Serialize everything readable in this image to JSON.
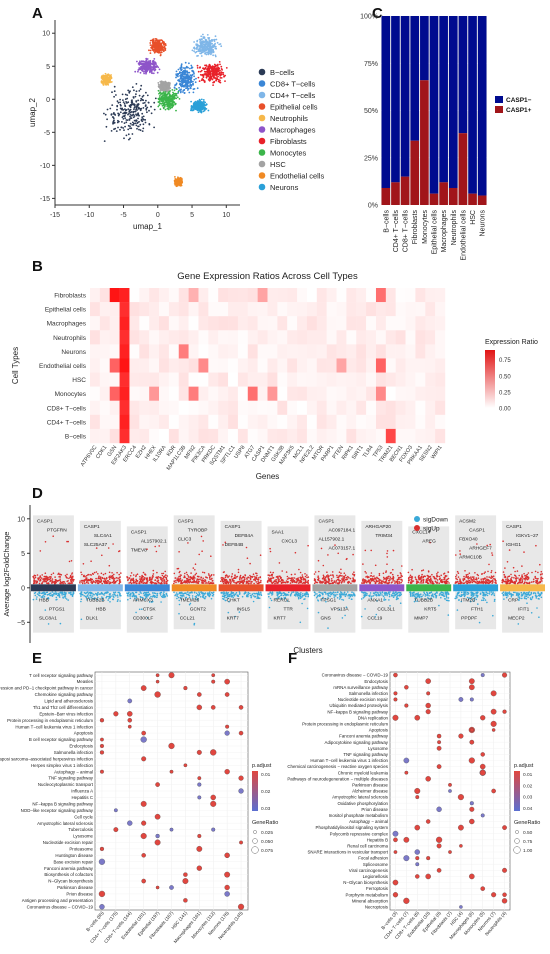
{
  "panel_labels": {
    "a": "A",
    "b": "B",
    "c": "C",
    "d": "D",
    "e": "E",
    "f": "F"
  },
  "colors": {
    "bcells": "#2b3a55",
    "cd8": "#3a86d6",
    "cd4": "#7fb6e8",
    "epi": "#e8502a",
    "neut": "#f6b84a",
    "mac": "#8e55c9",
    "fib": "#e8212a",
    "mono": "#3bb54a",
    "hsc": "#a3a3a3",
    "endo": "#f08a24",
    "neur": "#2aa0d8",
    "casp_neg": "#000b8f",
    "casp_pos": "#a1151a",
    "sig_down": "#3aa9d8",
    "sig_up": "#d93030"
  },
  "chart_data": [
    {
      "type": "scatter",
      "panel": "A",
      "xlabel": "umap_1",
      "ylabel": "umap_2",
      "xticks": [
        "-15",
        "-10",
        "-5",
        "0",
        "5",
        "10"
      ],
      "yticks": [
        "-15",
        "-10",
        "-5",
        "0",
        "5",
        "10"
      ],
      "xlim": [
        -15,
        12
      ],
      "ylim": [
        -16,
        12
      ],
      "legend": [
        {
          "label": "B−cells",
          "color": "#2b3a55"
        },
        {
          "label": "CD8+ T−cells",
          "color": "#3a86d6"
        },
        {
          "label": "CD4+ T−cells",
          "color": "#7fb6e8"
        },
        {
          "label": "Epithelial cells",
          "color": "#e8502a"
        },
        {
          "label": "Neutrophils",
          "color": "#f6b84a"
        },
        {
          "label": "Macrophages",
          "color": "#8e55c9"
        },
        {
          "label": "Fibroblasts",
          "color": "#e8212a"
        },
        {
          "label": "Monocytes",
          "color": "#3bb54a"
        },
        {
          "label": "HSC",
          "color": "#a3a3a3"
        },
        {
          "label": "Endothelial cells",
          "color": "#f08a24"
        },
        {
          "label": "Neurons",
          "color": "#2aa0d8"
        }
      ],
      "clusters": [
        {
          "name": "B−cells",
          "cx": -4,
          "cy": -2,
          "rx": 4.5,
          "ry": 5
        },
        {
          "name": "CD8+ T−cells",
          "cx": 4,
          "cy": 3,
          "rx": 2,
          "ry": 3
        },
        {
          "name": "CD4+ T−cells",
          "cx": 7,
          "cy": 8,
          "rx": 2.5,
          "ry": 2
        },
        {
          "name": "Epithelial cells",
          "cx": 0,
          "cy": 8,
          "rx": 1.5,
          "ry": 1.5
        },
        {
          "name": "Neutrophils",
          "cx": -7.5,
          "cy": 3,
          "rx": 1,
          "ry": 1
        },
        {
          "name": "Macrophages",
          "cx": -1.5,
          "cy": 5,
          "rx": 2,
          "ry": 1.5
        },
        {
          "name": "Fibroblasts",
          "cx": 8,
          "cy": 4,
          "rx": 2.5,
          "ry": 2
        },
        {
          "name": "Monocytes",
          "cx": 1.5,
          "cy": 0,
          "rx": 2,
          "ry": 2
        },
        {
          "name": "HSC",
          "cx": 1,
          "cy": 2,
          "rx": 1,
          "ry": 1
        },
        {
          "name": "Endothelial cells",
          "cx": 3,
          "cy": -12.5,
          "rx": 0.7,
          "ry": 0.8
        },
        {
          "name": "Neurons",
          "cx": 6,
          "cy": -1,
          "rx": 1.5,
          "ry": 1.2
        }
      ]
    },
    {
      "type": "bar",
      "panel": "C",
      "stacked": true,
      "categories": [
        "B−cells",
        "CD4+ T−cells",
        "CD8+ T−cells",
        "Fibroblasts",
        "Monocytes",
        "Epithelial cells",
        "Macrophages",
        "Neutrophils",
        "Endothelial cells",
        "HSC",
        "Neurons"
      ],
      "series": [
        {
          "name": "CASP1−",
          "values": [
            91,
            88,
            85,
            66,
            34,
            94,
            88,
            91,
            62,
            94,
            95
          ]
        },
        {
          "name": "CASP1+",
          "values": [
            9,
            12,
            15,
            34,
            66,
            6,
            12,
            9,
            38,
            6,
            5
          ]
        }
      ],
      "yticks": [
        "0%",
        "25%",
        "50%",
        "75%",
        "100%"
      ],
      "ylim": [
        0,
        100
      ],
      "legend_position": "right"
    },
    {
      "type": "heatmap",
      "panel": "B",
      "title": "Gene Expression Ratios Across Cell Types",
      "xlabel": "Genes",
      "ylabel": "Cell Types",
      "rows": [
        "Fibroblasts",
        "Epithelial cells",
        "Macrophages",
        "Neutrophils",
        "Neurons",
        "Endothelial cells",
        "HSC",
        "Monocytes",
        "CD8+ T−cells",
        "CD4+ T−cells",
        "B−cells"
      ],
      "cols": [
        "ATP6V0C",
        "CDK1",
        "GSN",
        "EIF2AK3",
        "ERCC4",
        "EZH2",
        "HHEX",
        "IL10RA",
        "KDR",
        "MAP1LC3B",
        "MFN2",
        "PIK3CA",
        "PRKDC",
        "SQSTM1",
        "SPTLC1",
        "USP8",
        "ATG7",
        "CASP1",
        "DNMT1",
        "GSK3B",
        "MAP3K5",
        "MCL1",
        "NFE2L2",
        "MTOR",
        "PARP1",
        "PTEN",
        "RIPK1",
        "SIRT1",
        "TLR4",
        "TP53",
        "TRIM21",
        "BECN1",
        "FOXO3",
        "PRKAA1",
        "SESN2",
        "WIPI1"
      ],
      "colorbar": {
        "title": "Expression Ratio",
        "ticks": [
          "0.75",
          "0.50",
          "0.25",
          "0.00"
        ],
        "min": 0,
        "max": 0.9
      },
      "hotspots": [
        {
          "row": 0,
          "col": 2,
          "v": 0.9
        },
        {
          "row": 0,
          "col": 3,
          "v": 0.85
        },
        {
          "row": 1,
          "col": 3,
          "v": 0.8
        },
        {
          "row": 2,
          "col": 3,
          "v": 0.85
        },
        {
          "row": 3,
          "col": 3,
          "v": 0.8
        },
        {
          "row": 4,
          "col": 3,
          "v": 0.85
        },
        {
          "row": 5,
          "col": 3,
          "v": 0.9
        },
        {
          "row": 6,
          "col": 3,
          "v": 0.8
        },
        {
          "row": 7,
          "col": 3,
          "v": 0.85
        },
        {
          "row": 8,
          "col": 3,
          "v": 0.8
        },
        {
          "row": 9,
          "col": 3,
          "v": 0.85
        },
        {
          "row": 10,
          "col": 3,
          "v": 0.8
        },
        {
          "row": 5,
          "col": 2,
          "v": 0.6
        },
        {
          "row": 7,
          "col": 2,
          "v": 0.6
        },
        {
          "row": 0,
          "col": 10,
          "v": 0.3
        },
        {
          "row": 7,
          "col": 10,
          "v": 0.5
        },
        {
          "row": 7,
          "col": 16,
          "v": 0.55
        },
        {
          "row": 0,
          "col": 29,
          "v": 0.55
        },
        {
          "row": 5,
          "col": 29,
          "v": 0.6
        },
        {
          "row": 7,
          "col": 29,
          "v": 0.45
        },
        {
          "row": 10,
          "col": 30,
          "v": 0.7
        },
        {
          "row": 4,
          "col": 9,
          "v": 0.5
        },
        {
          "row": 5,
          "col": 11,
          "v": 0.45
        },
        {
          "row": 7,
          "col": 6,
          "v": 0.4
        },
        {
          "row": 0,
          "col": 17,
          "v": 0.35
        },
        {
          "row": 7,
          "col": 18,
          "v": 0.4
        },
        {
          "row": 5,
          "col": 25,
          "v": 0.35
        }
      ]
    },
    {
      "type": "scatter",
      "panel": "D",
      "xlabel": "Clusters",
      "ylabel": "Average log2FoldChange",
      "yticks": [
        "10",
        "5",
        "0",
        "−5"
      ],
      "ylim": [
        -8,
        12
      ],
      "legend": [
        {
          "label": "sigDown",
          "color": "#3aa9d8"
        },
        {
          "label": "sigUp",
          "color": "#d93030"
        }
      ],
      "clusters": [
        {
          "name": "B−cells",
          "color": "#2b3a55",
          "up": [
            "CASP1",
            "PTGFRN"
          ],
          "down": [
            "HBB",
            "PTGS1",
            "SLC8A1"
          ]
        },
        {
          "name": "CD4+ T−cells",
          "color": "#7fb6e8",
          "up": [
            "CASP1",
            "SLC4A1",
            "SLC25A37"
          ],
          "down": [
            "TUBB2B",
            "HBB",
            "DLK1"
          ]
        },
        {
          "name": "CD8+ T−cells",
          "color": "#3a86d6",
          "up": [
            "CASP1",
            "AL157902.1",
            "TMEV8"
          ],
          "down": [
            "ARMCX3",
            "CTSK",
            "CD300LF"
          ]
        },
        {
          "name": "Endothelial cells",
          "color": "#f08a24",
          "up": [
            "CASP1",
            "TYROBP",
            "CLIC3"
          ],
          "down": [
            "TMEM26",
            "GCNT2",
            "CCL21"
          ]
        },
        {
          "name": "Epithelial cells",
          "color": "#e8502a",
          "up": [
            "CASP1",
            "DEFB4A",
            "DEFB4B"
          ],
          "down": [
            "CHKT",
            "INSL5",
            "KRT7"
          ]
        },
        {
          "name": "Fibroblasts",
          "color": "#e8212a",
          "up": [
            "SAA1",
            "CXCL3"
          ],
          "down": [
            "REROL",
            "TTR",
            "KRT7"
          ]
        },
        {
          "name": "HSC",
          "color": "#a3a3a3",
          "up": [
            "CASP1",
            "AC097184.1",
            "AL157902.1",
            "AC073157.1"
          ],
          "down": [
            "TPSG1",
            "VPS13A",
            "GNS"
          ]
        },
        {
          "name": "Macrophages",
          "color": "#8e55c9",
          "up": [
            "ARHGAP20",
            "TRIM34"
          ],
          "down": [
            "ANXA1",
            "CCL3L1",
            "CCL19"
          ]
        },
        {
          "name": "Monocytes",
          "color": "#3bb54a",
          "up": [
            "CXCL14",
            "AREG"
          ],
          "down": [
            "TUBB2B",
            "KRT5",
            "MMP7"
          ]
        },
        {
          "name": "Neurons",
          "color": "#2aa0d8",
          "up": [
            "ACSM2",
            "CASP1",
            "FBXO40",
            "ARHGEF7",
            "ARMC10B"
          ],
          "down": [
            "ITM2B",
            "FTH1",
            "PPDPF"
          ]
        },
        {
          "name": "Neutrophils",
          "color": "#f6b84a",
          "up": [
            "CASP1",
            "IGKV1−27",
            "IGHG1"
          ],
          "down": [
            "CRP",
            "IFIT1",
            "MECP2"
          ]
        }
      ]
    },
    {
      "type": "scatter",
      "panel": "E",
      "legend": {
        "title": "p.adjust",
        "ticks": [
          "0.01",
          "0.02",
          "0.03"
        ],
        "size_title": "GeneRatio",
        "size_ticks": [
          "0.025",
          "0.050",
          "0.075"
        ]
      },
      "pathways": [
        "T cell receptor signaling pathway",
        "Measles",
        "PD−L1 expression and PD−1 checkpoint pathway in cancer",
        "Chemokine signaling pathway",
        "Lipid and atherosclerosis",
        "Th1 and Th2 cell differentiation",
        "Epstein−Barr virus infection",
        "Protein processing in endoplasmic reticulum",
        "Human T−cell leukemia virus 1 infection",
        "Apoptosis",
        "B cell receptor signaling pathway",
        "Endocytosis",
        "Salmonella infection",
        "Kaposi sarcoma−associated herpesvirus infection",
        "Herpes simplex virus 1 infection",
        "Autophagy − animal",
        "TNF signaling pathway",
        "Nucleocytoplasmic transport",
        "Influenza A",
        "Hepatitis C",
        "NF−kappa B signaling pathway",
        "NOD−like receptor signaling pathway",
        "Cell cycle",
        "Amyotrophic lateral sclerosis",
        "Tuberculosis",
        "Lysosome",
        "Nucleotide excision repair",
        "Proteasome",
        "Huntington disease",
        "Base excision repair",
        "Fanconi anemia pathway",
        "Biosynthesis of cofactors",
        "N−Glycan biosynthesis",
        "Parkinson disease",
        "Prion disease",
        "Antigen processing and presentation",
        "Coronavirus disease − COVID−19"
      ],
      "clusters": [
        "B−cells (80)",
        "CD4+ T−cells (175)",
        "CD8+ T−cells (144)",
        "Endothelial (181)",
        "Epithelial (197)",
        "Fibroblasts (167)",
        "HSC (141)",
        "Macrophages (161)",
        "Monocytes (112)",
        "Neurons (176)",
        "Neutrophils (145)"
      ]
    },
    {
      "type": "scatter",
      "panel": "F",
      "legend": {
        "title": "p.adjust",
        "ticks": [
          "0.01",
          "0.02",
          "0.03",
          "0.04"
        ],
        "size_title": "GeneRatio",
        "size_ticks": [
          "0.50",
          "0.75",
          "1.00"
        ]
      },
      "pathways": [
        "Coronavirus disease − COVID−19",
        "Endocytosis",
        "mRNA surveillance pathway",
        "Salmonella infection",
        "Nucleotide excision repair",
        "Ubiquitin mediated proteolysis",
        "NF−kappa B signaling pathway",
        "DNA replication",
        "Protein processing in endoplasmic reticulum",
        "Apoptosis",
        "Fanconi anemia pathway",
        "Adipocytokine signaling pathway",
        "Lysosome",
        "TNF signaling pathway",
        "Human T−cell leukemia virus 1 infection",
        "Chemical carcinogenesis − reactive oxygen species",
        "Chronic myeloid leukemia",
        "Pathways of neurodegeneration − multiple diseases",
        "Parkinson disease",
        "Alzheimer disease",
        "Amyotrophic lateral sclerosis",
        "Oxidative phosphorylation",
        "Prion disease",
        "Inositol phosphate metabolism",
        "Autophagy − animal",
        "Phosphatidylinositol signaling system",
        "Polycomb repressive complex",
        "Hepatitis B",
        "Renal cell carcinoma",
        "SNARE interactions in vesicular transport",
        "Focal adhesion",
        "Spliceosome",
        "Viral carcinogenesis",
        "Legionellosis",
        "N−Glycan biosynthesis",
        "Ferroptosis",
        "Porphyrin metabolism",
        "Mineral absorption",
        "Necroptosis"
      ],
      "clusters": [
        "B−cells (3)",
        "CD4+ T−cells (7)",
        "CD8+ T−cells (6)",
        "Endothelial (10)",
        "Epithelial (8)",
        "Fibroblasts (7)",
        "HSC (4)",
        "Macrophages (6)",
        "Monocytes (5)",
        "Neurons (7)",
        "Neutrophils (4)"
      ]
    }
  ]
}
